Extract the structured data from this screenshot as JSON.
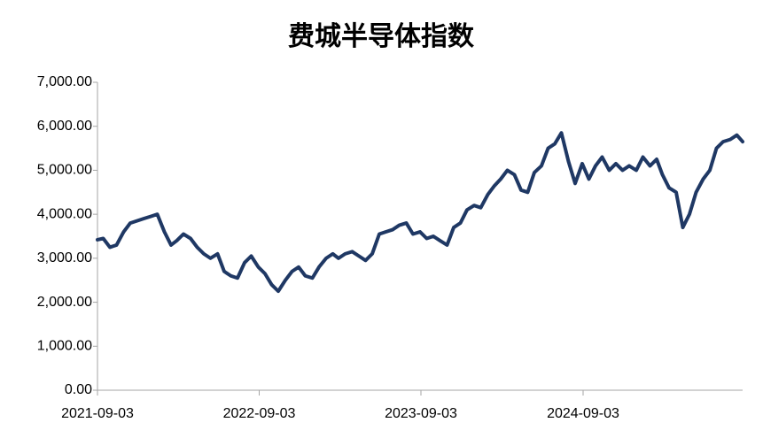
{
  "chart_data": {
    "type": "line",
    "title": "费城半导体指数",
    "x": [
      "2021-09-03",
      "2021-09-16",
      "2021-10-01",
      "2021-10-16",
      "2021-11-01",
      "2021-11-16",
      "2021-12-01",
      "2021-12-16",
      "2022-01-01",
      "2022-01-16",
      "2022-02-01",
      "2022-02-16",
      "2022-03-01",
      "2022-03-16",
      "2022-04-01",
      "2022-04-16",
      "2022-05-01",
      "2022-05-16",
      "2022-06-01",
      "2022-06-16",
      "2022-07-01",
      "2022-07-16",
      "2022-08-01",
      "2022-08-16",
      "2022-09-01",
      "2022-09-16",
      "2022-10-01",
      "2022-10-16",
      "2022-11-01",
      "2022-11-16",
      "2022-12-01",
      "2022-12-16",
      "2023-01-01",
      "2023-01-16",
      "2023-02-01",
      "2023-02-16",
      "2023-03-01",
      "2023-03-16",
      "2023-04-01",
      "2023-04-16",
      "2023-05-01",
      "2023-05-16",
      "2023-06-01",
      "2023-06-16",
      "2023-07-01",
      "2023-07-16",
      "2023-08-01",
      "2023-08-16",
      "2023-09-01",
      "2023-09-16",
      "2023-10-01",
      "2023-10-16",
      "2023-11-01",
      "2023-11-16",
      "2023-12-01",
      "2023-12-16",
      "2024-01-01",
      "2024-01-16",
      "2024-02-01",
      "2024-02-16",
      "2024-03-01",
      "2024-03-16",
      "2024-04-01",
      "2024-04-16",
      "2024-05-01",
      "2024-05-16",
      "2024-06-01",
      "2024-06-16",
      "2024-07-01",
      "2024-07-16",
      "2024-08-01",
      "2024-08-16",
      "2024-09-01",
      "2024-09-16",
      "2024-10-01",
      "2024-10-16",
      "2024-11-01",
      "2024-11-16",
      "2024-12-01",
      "2024-12-16",
      "2025-01-01",
      "2025-01-16",
      "2025-02-01",
      "2025-02-16",
      "2025-03-01",
      "2025-03-16",
      "2025-04-01",
      "2025-04-16",
      "2025-05-01",
      "2025-05-16",
      "2025-06-01",
      "2025-06-16",
      "2025-07-01",
      "2025-07-16",
      "2025-08-01",
      "2025-08-16",
      "2025-08-29"
    ],
    "series": [
      {
        "color": "#1f3864",
        "values": [
          3420,
          3450,
          3250,
          3300,
          3600,
          3800,
          3850,
          3900,
          3950,
          4000,
          3600,
          3300,
          3400,
          3550,
          3450,
          3250,
          3100,
          3000,
          3100,
          2700,
          2600,
          2550,
          2900,
          3050,
          2800,
          2650,
          2400,
          2250,
          2500,
          2700,
          2800,
          2600,
          2550,
          2800,
          3000,
          3100,
          3000,
          3100,
          3150,
          3050,
          2950,
          3100,
          3550,
          3600,
          3650,
          3750,
          3800,
          3550,
          3600,
          3450,
          3500,
          3400,
          3300,
          3700,
          3800,
          4100,
          4200,
          4150,
          4450,
          4650,
          4800,
          5000,
          4900,
          4550,
          4500,
          4950,
          5100,
          5500,
          5600,
          5850,
          5200,
          4700,
          5150,
          4800,
          5100,
          5300,
          5000,
          5150,
          5000,
          5100,
          5000,
          5300,
          5100,
          5250,
          4900,
          4600,
          4500,
          3700,
          4000,
          4500,
          4800,
          5000,
          5500,
          5650,
          5700,
          5800,
          5650
        ]
      }
    ],
    "xlim": [
      "2021-09-03",
      "2025-08-29"
    ],
    "xticks": [
      "2021-09-03",
      "2022-09-03",
      "2023-09-03",
      "2024-09-03"
    ],
    "ylim": [
      0,
      7000
    ],
    "yticks": [
      {
        "value": 0,
        "label": "0.00"
      },
      {
        "value": 1000,
        "label": "1,000.00"
      },
      {
        "value": 2000,
        "label": "2,000.00"
      },
      {
        "value": 3000,
        "label": "3,000.00"
      },
      {
        "value": 4000,
        "label": "4,000.00"
      },
      {
        "value": 5000,
        "label": "5,000.00"
      },
      {
        "value": 6000,
        "label": "6,000.00"
      },
      {
        "value": 7000,
        "label": "7,000.00"
      }
    ],
    "grid": false
  }
}
